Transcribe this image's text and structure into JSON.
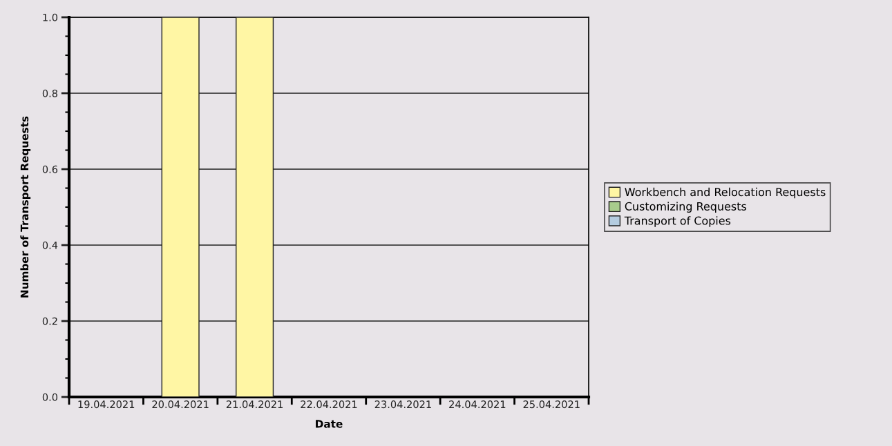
{
  "chart_data": {
    "type": "bar",
    "stacked": true,
    "xlabel": "Date",
    "ylabel": "Number of Transport Requests",
    "categories": [
      "19.04.2021",
      "20.04.2021",
      "21.04.2021",
      "22.04.2021",
      "23.04.2021",
      "24.04.2021",
      "25.04.2021"
    ],
    "series": [
      {
        "name": "Workbench and Relocation Requests",
        "color": "#fff6a4",
        "values": [
          0,
          1,
          1,
          0,
          0,
          0,
          0
        ]
      },
      {
        "name": "Customizing Requests",
        "color": "#a8cc8c",
        "values": [
          0,
          0,
          0,
          0,
          0,
          0,
          0
        ]
      },
      {
        "name": "Transport of Copies",
        "color": "#b4cce0",
        "values": [
          0,
          0,
          0,
          0,
          0,
          0,
          0
        ]
      }
    ],
    "ylim": [
      0,
      1.0
    ],
    "yticks": [
      {
        "value": 0,
        "label": "0.0"
      },
      {
        "value": 0.05,
        "label": null
      },
      {
        "value": 0.1,
        "label": null
      },
      {
        "value": 0.15,
        "label": null
      },
      {
        "value": 0.2,
        "label": "0.2"
      },
      {
        "value": 0.25,
        "label": null
      },
      {
        "value": 0.3,
        "label": null
      },
      {
        "value": 0.35,
        "label": null
      },
      {
        "value": 0.4,
        "label": "0.4"
      },
      {
        "value": 0.45,
        "label": null
      },
      {
        "value": 0.5,
        "label": null
      },
      {
        "value": 0.55,
        "label": null
      },
      {
        "value": 0.6,
        "label": "0.6"
      },
      {
        "value": 0.65,
        "label": null
      },
      {
        "value": 0.7,
        "label": null
      },
      {
        "value": 0.75,
        "label": null
      },
      {
        "value": 0.8,
        "label": "0.8"
      },
      {
        "value": 0.85,
        "label": null
      },
      {
        "value": 0.9,
        "label": null
      },
      {
        "value": 0.95,
        "label": null
      },
      {
        "value": 1.0,
        "label": "1.0"
      }
    ],
    "grid": "y",
    "legend": "right"
  }
}
